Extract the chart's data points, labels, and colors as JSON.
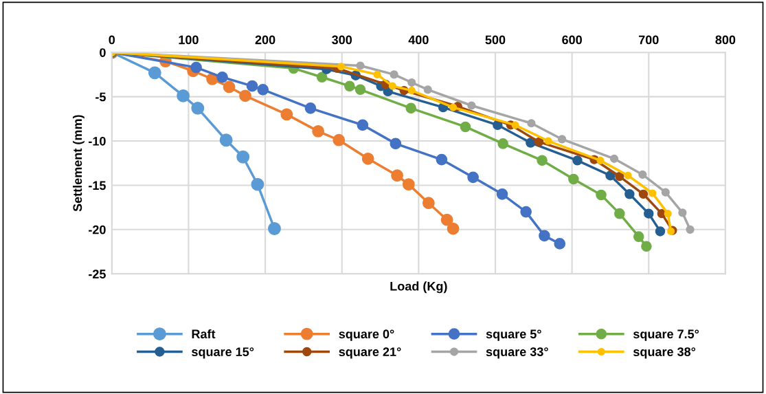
{
  "chart_data": {
    "type": "line",
    "xlabel": "Load (Kg)",
    "ylabel": "Settlement (mm)",
    "xlim": [
      0,
      800
    ],
    "xticks": [
      0,
      100,
      200,
      300,
      400,
      500,
      600,
      700,
      800
    ],
    "ylim": [
      -25,
      0
    ],
    "yticks": [
      -25,
      -20,
      -15,
      -10,
      -5,
      0
    ],
    "grid": true,
    "legend": "bottom",
    "marker": "circle",
    "line_style": "solid",
    "series": [
      {
        "name": "Raft",
        "color": "#5b9bd5",
        "x": [
          0,
          56,
          93,
          112,
          149,
          171,
          190,
          212
        ],
        "values": [
          0,
          -2.3,
          -4.9,
          -6.3,
          -9.9,
          -11.8,
          -14.9,
          -19.9
        ]
      },
      {
        "name": "square 0°",
        "color": "#ed7d31",
        "x": [
          0,
          70,
          106,
          131,
          153,
          174,
          228,
          269,
          296,
          334,
          372,
          387,
          413,
          437,
          445
        ],
        "values": [
          0,
          -1.0,
          -2.1,
          -3.0,
          -3.9,
          -4.9,
          -7.0,
          -8.9,
          -9.9,
          -12.0,
          -13.9,
          -14.9,
          -17.0,
          -18.9,
          -19.9
        ]
      },
      {
        "name": "square 5°",
        "color": "#4472c4",
        "x": [
          0,
          110,
          144,
          183,
          197,
          259,
          327,
          370,
          430,
          471,
          509,
          540,
          564,
          584
        ],
        "values": [
          0,
          -1.7,
          -2.8,
          -3.8,
          -4.2,
          -6.3,
          -8.2,
          -10.3,
          -12.1,
          -14.1,
          -16.0,
          -18.0,
          -20.7,
          -21.6
        ]
      },
      {
        "name": "square 7.5°",
        "color": "#70ad47",
        "x": [
          0,
          237,
          274,
          310,
          324,
          390,
          461,
          510,
          561,
          602,
          638,
          662,
          687,
          697
        ],
        "values": [
          0,
          -1.8,
          -2.8,
          -3.8,
          -4.2,
          -6.3,
          -8.4,
          -10.3,
          -12.2,
          -14.3,
          -16.1,
          -18.2,
          -20.8,
          -21.9
        ]
      },
      {
        "name": "square 15°",
        "color": "#255e91",
        "x": [
          0,
          280,
          318,
          351,
          360,
          432,
          503,
          546,
          607,
          650,
          675,
          700,
          715
        ],
        "values": [
          0,
          -1.9,
          -2.6,
          -3.8,
          -4.4,
          -6.2,
          -8.2,
          -10.2,
          -12.2,
          -13.9,
          -16.0,
          -18.2,
          -20.2
        ]
      },
      {
        "name": "square 21°",
        "color": "#9e480e",
        "x": [
          0,
          294,
          357,
          381,
          451,
          520,
          557,
          629,
          662,
          693,
          717,
          731
        ],
        "values": [
          0,
          -1.8,
          -3.6,
          -4.3,
          -6.1,
          -8.2,
          -10.1,
          -12.1,
          -14.0,
          -16.0,
          -18.2,
          -20.1
        ]
      },
      {
        "name": "square 33°",
        "color": "#a5a5a5",
        "x": [
          0,
          324,
          368,
          391,
          412,
          469,
          547,
          587,
          655,
          692,
          722,
          744,
          754
        ],
        "values": [
          0,
          -1.5,
          -2.5,
          -3.4,
          -4.2,
          -6.0,
          -8.0,
          -9.8,
          -12.0,
          -13.8,
          -15.8,
          -18.1,
          -20.0
        ]
      },
      {
        "name": "square 38°",
        "color": "#ffc000",
        "x": [
          0,
          299,
          346,
          366,
          391,
          445,
          526,
          569,
          637,
          673,
          705,
          725,
          729
        ],
        "values": [
          0,
          -1.6,
          -2.5,
          -3.8,
          -4.3,
          -6.2,
          -8.2,
          -10.0,
          -12.2,
          -13.9,
          -15.9,
          -18.2,
          -20.2
        ]
      }
    ]
  }
}
